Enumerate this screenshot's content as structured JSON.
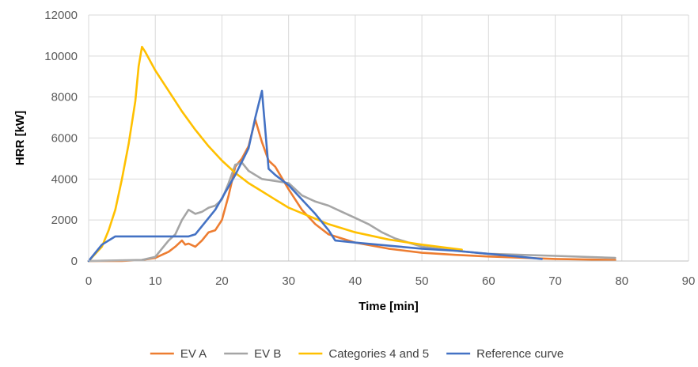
{
  "chart_data": {
    "type": "line",
    "title": "",
    "xlabel": "Time [min]",
    "ylabel": "HRR [kW]",
    "xlim": [
      0,
      90
    ],
    "ylim": [
      0,
      12000
    ],
    "x_ticks": [
      0,
      10,
      20,
      30,
      40,
      50,
      60,
      70,
      80,
      90
    ],
    "y_ticks": [
      0,
      2000,
      4000,
      6000,
      8000,
      10000,
      12000
    ],
    "x_tick_labels": [
      "0",
      "10",
      "20",
      "30",
      "40",
      "50",
      "60",
      "70",
      "80",
      "90"
    ],
    "y_tick_labels": [
      "0",
      "2000",
      "4000",
      "6000",
      "8000",
      "10000",
      "12000"
    ],
    "grid": "vertical and horizontal",
    "legend_position": "bottom",
    "series": [
      {
        "name": "EV A",
        "color": "#ED7D31",
        "points": [
          [
            0,
            0
          ],
          [
            5,
            0
          ],
          [
            8,
            50
          ],
          [
            10,
            150
          ],
          [
            11,
            300
          ],
          [
            12,
            450
          ],
          [
            13,
            700
          ],
          [
            14,
            1000
          ],
          [
            14.5,
            800
          ],
          [
            15,
            850
          ],
          [
            16,
            700
          ],
          [
            17,
            1000
          ],
          [
            18,
            1400
          ],
          [
            19,
            1500
          ],
          [
            20,
            2000
          ],
          [
            21,
            3200
          ],
          [
            22,
            4600
          ],
          [
            23,
            5000
          ],
          [
            24,
            5600
          ],
          [
            25,
            6900
          ],
          [
            26,
            5800
          ],
          [
            27,
            4900
          ],
          [
            28,
            4600
          ],
          [
            30,
            3500
          ],
          [
            32,
            2500
          ],
          [
            34,
            1800
          ],
          [
            36,
            1300
          ],
          [
            38,
            1100
          ],
          [
            40,
            900
          ],
          [
            45,
            600
          ],
          [
            50,
            400
          ],
          [
            55,
            300
          ],
          [
            60,
            220
          ],
          [
            70,
            100
          ],
          [
            79,
            50
          ]
        ]
      },
      {
        "name": "EV B",
        "color": "#A5A5A5",
        "points": [
          [
            0,
            0
          ],
          [
            8,
            50
          ],
          [
            10,
            200
          ],
          [
            11,
            600
          ],
          [
            12,
            1000
          ],
          [
            13,
            1300
          ],
          [
            14,
            2000
          ],
          [
            15,
            2500
          ],
          [
            16,
            2300
          ],
          [
            17,
            2400
          ],
          [
            18,
            2600
          ],
          [
            19,
            2700
          ],
          [
            20,
            3000
          ],
          [
            21,
            3800
          ],
          [
            22,
            4700
          ],
          [
            23,
            4800
          ],
          [
            24,
            4400
          ],
          [
            26,
            4000
          ],
          [
            28,
            3900
          ],
          [
            30,
            3800
          ],
          [
            32,
            3200
          ],
          [
            34,
            2900
          ],
          [
            36,
            2700
          ],
          [
            38,
            2400
          ],
          [
            40,
            2100
          ],
          [
            42,
            1800
          ],
          [
            44,
            1400
          ],
          [
            46,
            1100
          ],
          [
            48,
            900
          ],
          [
            50,
            700
          ],
          [
            55,
            500
          ],
          [
            60,
            350
          ],
          [
            70,
            250
          ],
          [
            79,
            150
          ]
        ]
      },
      {
        "name": "Categories 4 and 5",
        "color": "#FFC000",
        "points": [
          [
            0,
            0
          ],
          [
            2,
            700
          ],
          [
            3,
            1500
          ],
          [
            4,
            2500
          ],
          [
            5,
            4000
          ],
          [
            6,
            5700
          ],
          [
            7,
            7800
          ],
          [
            7.5,
            9500
          ],
          [
            8,
            10450
          ],
          [
            8.5,
            10200
          ],
          [
            10,
            9300
          ],
          [
            12,
            8300
          ],
          [
            14,
            7300
          ],
          [
            16,
            6400
          ],
          [
            18,
            5600
          ],
          [
            20,
            4900
          ],
          [
            22,
            4300
          ],
          [
            24,
            3800
          ],
          [
            26,
            3400
          ],
          [
            28,
            3000
          ],
          [
            30,
            2600
          ],
          [
            33,
            2200
          ],
          [
            36,
            1800
          ],
          [
            40,
            1400
          ],
          [
            45,
            1050
          ],
          [
            50,
            800
          ],
          [
            56,
            550
          ]
        ]
      },
      {
        "name": "Reference curve",
        "color": "#4472C4",
        "points": [
          [
            0,
            0
          ],
          [
            2,
            800
          ],
          [
            4,
            1200
          ],
          [
            6,
            1200
          ],
          [
            15,
            1200
          ],
          [
            16,
            1300
          ],
          [
            19,
            2500
          ],
          [
            22,
            4200
          ],
          [
            24,
            5500
          ],
          [
            25,
            7000
          ],
          [
            26,
            8300
          ],
          [
            27,
            4500
          ],
          [
            28,
            4200
          ],
          [
            30,
            3700
          ],
          [
            32,
            3000
          ],
          [
            34,
            2300
          ],
          [
            36,
            1500
          ],
          [
            37,
            1000
          ],
          [
            40,
            900
          ],
          [
            45,
            750
          ],
          [
            50,
            600
          ],
          [
            55,
            500
          ],
          [
            60,
            350
          ],
          [
            65,
            200
          ],
          [
            68,
            100
          ]
        ]
      }
    ]
  }
}
